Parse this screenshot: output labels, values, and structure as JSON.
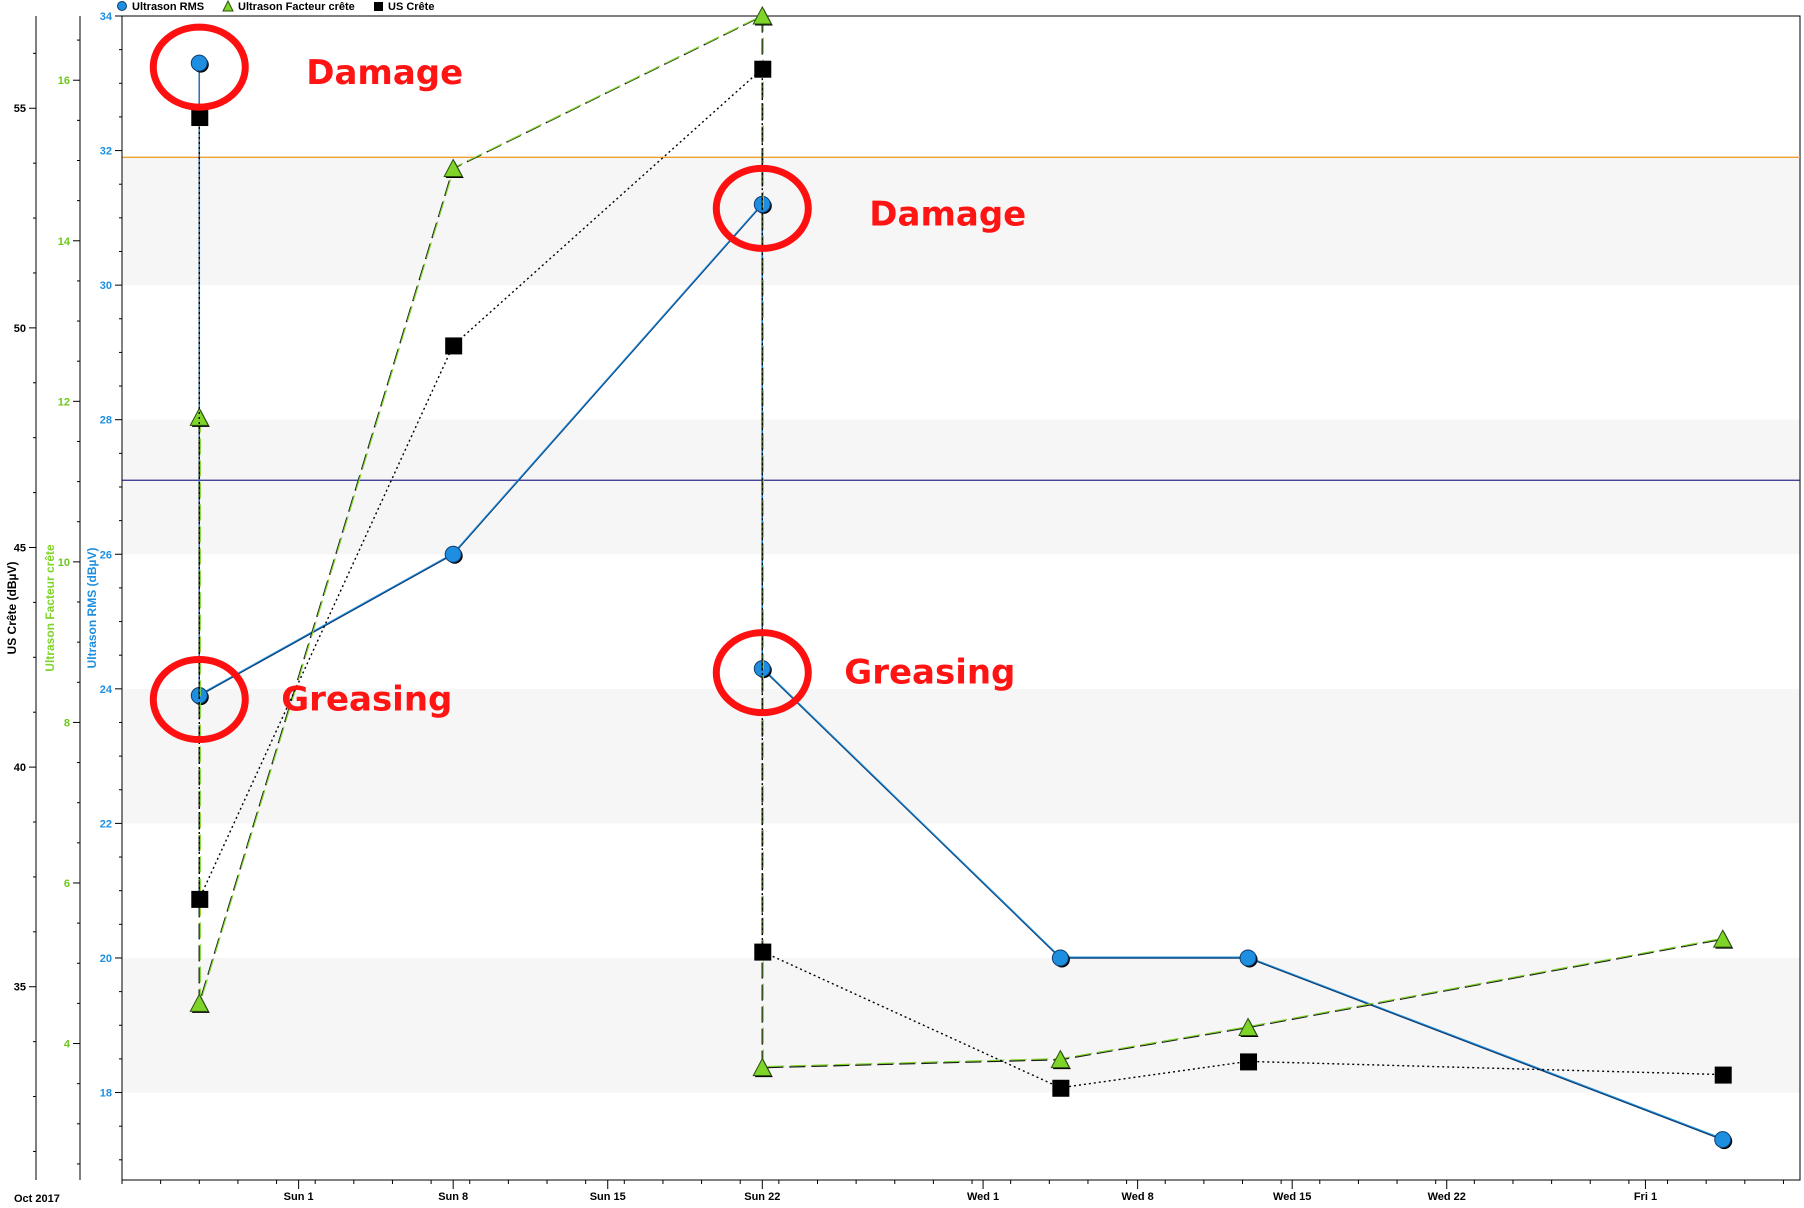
{
  "chart_data": {
    "type": "line",
    "legend": {
      "placement": "top-left",
      "entries": [
        "Ultrason RMS",
        "Ultrason Facteur crête",
        "US Crête"
      ]
    },
    "axes": {
      "us_crete": {
        "label": "US Crête (dBµV)",
        "ticks": [
          35,
          40,
          45,
          50,
          55
        ],
        "range": [
          30.6,
          57.1
        ],
        "color": "#000000"
      },
      "facteur": {
        "label": "Ultrason Facteur crête",
        "ticks": [
          4,
          6,
          8,
          10,
          12,
          14,
          16
        ],
        "range": [
          2.3,
          16.8
        ],
        "color": "#7fd42a"
      },
      "rms": {
        "label": "Ultrason RMS (dBµV)",
        "ticks": [
          18,
          20,
          22,
          24,
          26,
          28,
          30,
          32,
          34
        ],
        "range": [
          16.7,
          34.0
        ],
        "color": "#1e8fe0"
      }
    },
    "x_axis": {
      "ticks": [
        "Sun 1",
        "Sun 8",
        "Sun 15",
        "Sun 22",
        "Wed 1",
        "Wed 8",
        "Wed 15",
        "Wed 22",
        "Fri 1"
      ],
      "tick_days": [
        0,
        7,
        14,
        21,
        31,
        38,
        45,
        52,
        61
      ],
      "range_days": [
        -8,
        68
      ],
      "corner_label": "Oct 2017"
    },
    "series": [
      {
        "name": "Ultrason RMS",
        "axis": "rms",
        "color": "#1e8fe0",
        "marker": "circle",
        "x": [
          -4.5,
          -4.5,
          7,
          21,
          21,
          34.5,
          43,
          64.5
        ],
        "y": [
          33.3,
          23.9,
          26.0,
          31.2,
          24.3,
          20.0,
          20.0,
          17.3
        ]
      },
      {
        "name": "Ultrason Facteur crête",
        "axis": "facteur",
        "color": "#7fd42a",
        "marker": "triangle",
        "x": [
          -4.5,
          -4.5,
          7,
          21,
          21,
          34.5,
          43,
          64.5
        ],
        "y": [
          11.8,
          4.5,
          14.9,
          16.8,
          3.7,
          3.8,
          4.2,
          5.3
        ],
        "dash": "long"
      },
      {
        "name": "US Crête",
        "axis": "us_crete",
        "color": "#000000",
        "marker": "square",
        "x": [
          -4.5,
          -4.5,
          7,
          21,
          21,
          34.5,
          43,
          64.5
        ],
        "y": [
          54.8,
          37.0,
          49.6,
          55.9,
          35.8,
          32.7,
          33.3,
          33.0
        ],
        "dash": "dotted"
      }
    ],
    "reference_lines": [
      {
        "axis": "rms",
        "value": 31.9,
        "color": "#f0a030"
      },
      {
        "axis": "rms",
        "value": 27.1,
        "color": "#2a2a8a"
      }
    ],
    "shaded_bands_rms": [
      [
        18,
        20
      ],
      [
        22,
        24
      ],
      [
        26,
        28
      ],
      [
        30,
        31.9
      ]
    ],
    "annotations": [
      {
        "text": "Damage",
        "x": -4.5,
        "axis": "rms",
        "y": 33.3
      },
      {
        "text": "Damage",
        "x": 21,
        "axis": "rms",
        "y": 31.2
      },
      {
        "text": "Greasing",
        "x": -4.5,
        "axis": "rms",
        "y": 23.9
      },
      {
        "text": "Greasing",
        "x": 21,
        "axis": "rms",
        "y": 24.3
      }
    ]
  }
}
